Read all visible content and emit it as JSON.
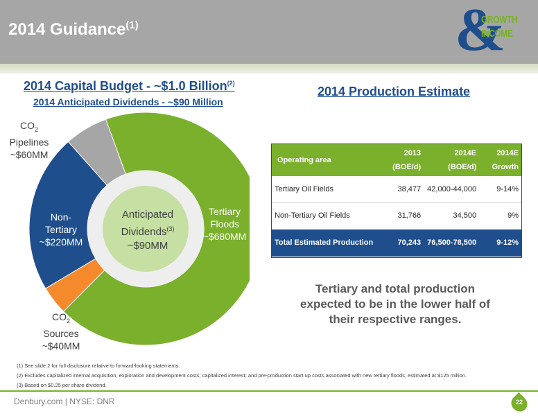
{
  "header": {
    "title": "2014 Guidance",
    "title_footnote": "(1)",
    "logo_word_1": "GROWTH",
    "logo_word_2": "INCOME"
  },
  "budget": {
    "title": "2014 Capital Budget - ~$1.0 Billion",
    "title_footnote": "(2)",
    "dividend_title": "2014 Anticipated Dividends - ~$90 Million",
    "center_line1": "Anticipated",
    "center_line2": "Dividends",
    "center_footnote": "(3)",
    "center_line3": "~$90MM"
  },
  "chart_data": {
    "type": "pie",
    "title": "2014 Capital Budget - ~$1.0 Billion",
    "categories": [
      "Tertiary Floods",
      "CO2 Sources",
      "Non-Tertiary",
      "CO2 Pipelines"
    ],
    "values": [
      680,
      40,
      220,
      60
    ],
    "units": "$MM",
    "colors": [
      "#7ab02c",
      "#f58a2c",
      "#1f4e8c",
      "#a6a6a6"
    ],
    "labels": {
      "tertiary_1": "Tertiary",
      "tertiary_2": "Floods",
      "tertiary_3": "~$680MM",
      "sources_1": "CO",
      "sources_sub": "2",
      "sources_2": "Sources",
      "sources_3": "~$40MM",
      "nontert_1": "Non-",
      "nontert_2": "Tertiary",
      "nontert_3": "~$220MM",
      "pipes_1": "CO",
      "pipes_sub": "2",
      "pipes_2": "Pipelines",
      "pipes_3": "~$60MM"
    }
  },
  "production": {
    "title": "2014 Production Estimate",
    "headers": {
      "area": "Operating area",
      "c2013_1": "2013",
      "c2013_2": "(BOE/d)",
      "c2014_1": "2014E",
      "c2014_2": "(BOE/d)",
      "growth_1": "2014E",
      "growth_2": "Growth"
    },
    "rows": [
      {
        "area": "Tertiary Oil Fields",
        "v2013": "38,477",
        "v2014": "42,000-44,000",
        "growth": "9-14%"
      },
      {
        "area": "Non-Tertiary Oil Fields",
        "v2013": "31,766",
        "v2014": "34,500",
        "growth": "9%"
      }
    ],
    "total": {
      "area": "Total Estimated Production",
      "v2013": "70,243",
      "v2014": "76,500-78,500",
      "growth": "9-12%"
    },
    "callout": "Tertiary and total production expected to be in the lower half of their respective ranges."
  },
  "footnotes": [
    "(1)  See slide 2 for full disclosure relative to forward-looking statements.",
    "(2)  Excludes capitalized internal acquisition, exploration and development costs; capitalized interest; and pre-production start up costs associated with new tertiary floods, estimated at $125 million.",
    "(3)  Based on $0.25 per share dividend."
  ],
  "footer": {
    "text": "Denbury.com | NYSE: DNR",
    "page": "22"
  }
}
